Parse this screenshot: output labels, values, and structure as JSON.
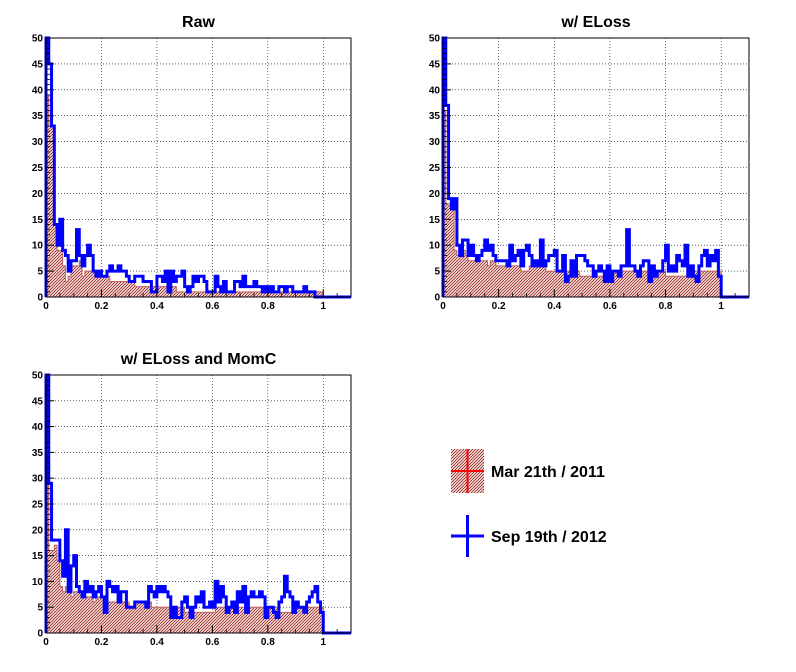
{
  "chart_data": [
    {
      "type": "histogram",
      "title": "Raw",
      "xlabel": "",
      "ylabel": "",
      "xlim": [
        0,
        1.1
      ],
      "ylim": [
        0,
        50
      ],
      "x_ticks": [
        "0",
        "0.2",
        "0.4",
        "0.6",
        "0.8",
        "1"
      ],
      "y_ticks": [
        "0",
        "5",
        "10",
        "15",
        "20",
        "25",
        "30",
        "35",
        "40",
        "45",
        "50"
      ],
      "grid": true,
      "bin_width": 0.01,
      "series": [
        {
          "name": "Mar 21th / 2011",
          "values": [
            39,
            33,
            33,
            14,
            9,
            9,
            6,
            3,
            4,
            6,
            6,
            6,
            7,
            4,
            5,
            5,
            5,
            5,
            5,
            4,
            4,
            4,
            4,
            3,
            3,
            3,
            3,
            3,
            3,
            3,
            3,
            3,
            2,
            2,
            2,
            2,
            2,
            2,
            2,
            2,
            2,
            2,
            2,
            2,
            2,
            2,
            2,
            1,
            1,
            1,
            1,
            1,
            1,
            1,
            1,
            1,
            1,
            1,
            1,
            1,
            1,
            1,
            1,
            1,
            1,
            1,
            1,
            1,
            1,
            1,
            1,
            1,
            1,
            1,
            1,
            1,
            1,
            1,
            1,
            1,
            1,
            1,
            1,
            1,
            1,
            1,
            1,
            1,
            1,
            1,
            1,
            1,
            1,
            1,
            1,
            1,
            1,
            1,
            1,
            1
          ]
        },
        {
          "name": "Sep 19th / 2012",
          "values": [
            50,
            45,
            33,
            14,
            10,
            15,
            9,
            8,
            5,
            7,
            7,
            13,
            8,
            6,
            8,
            10,
            8,
            5,
            4,
            5,
            4,
            4,
            5,
            6,
            5,
            5,
            6,
            5,
            5,
            4,
            3,
            3,
            4,
            4,
            4,
            3,
            3,
            3,
            1,
            1,
            4,
            4,
            3,
            5,
            1,
            5,
            3,
            4,
            4,
            5,
            2,
            1,
            2,
            4,
            3,
            4,
            4,
            3,
            1,
            1,
            1,
            4,
            2,
            1,
            3,
            1,
            1,
            1,
            3,
            3,
            2,
            4,
            2,
            2,
            2,
            3,
            2,
            2,
            1,
            2,
            1,
            2,
            1,
            1,
            2,
            2,
            1,
            2,
            2,
            1,
            1,
            1,
            1,
            2,
            1,
            1,
            1,
            0,
            0,
            0
          ]
        }
      ]
    },
    {
      "type": "histogram",
      "title": "w/ ELoss",
      "xlabel": "",
      "ylabel": "",
      "xlim": [
        0,
        1.1
      ],
      "ylim": [
        0,
        50
      ],
      "x_ticks": [
        "0",
        "0.2",
        "0.4",
        "0.6",
        "0.8",
        "1"
      ],
      "y_ticks": [
        "0",
        "5",
        "10",
        "15",
        "20",
        "25",
        "30",
        "35",
        "40",
        "45",
        "50"
      ],
      "grid": true,
      "bin_width": 0.01,
      "series": [
        {
          "name": "Mar 21th / 2011",
          "values": [
            36,
            18,
            18,
            17,
            9,
            8,
            8,
            9,
            8,
            7,
            7,
            7,
            7,
            7,
            7,
            7,
            6,
            7,
            7,
            6,
            6,
            6,
            6,
            6,
            6,
            6,
            6,
            6,
            5,
            5,
            5,
            6,
            6,
            6,
            6,
            6,
            6,
            5,
            5,
            5,
            5,
            5,
            5,
            5,
            5,
            5,
            5,
            5,
            5,
            4,
            4,
            4,
            4,
            4,
            4,
            4,
            4,
            4,
            4,
            4,
            4,
            5,
            5,
            5,
            5,
            5,
            5,
            5,
            5,
            5,
            5,
            5,
            5,
            5,
            5,
            5,
            5,
            5,
            5,
            5,
            4,
            4,
            4,
            4,
            4,
            4,
            4,
            4,
            4,
            5,
            5,
            5,
            5,
            5,
            5,
            5,
            5,
            5,
            5,
            5
          ]
        },
        {
          "name": "Sep 19th / 2012",
          "values": [
            50,
            37,
            19,
            17,
            19,
            10,
            8,
            11,
            11,
            8,
            10,
            8,
            7,
            8,
            9,
            11,
            9,
            10,
            8,
            7,
            7,
            7,
            7,
            6,
            10,
            7,
            8,
            9,
            6,
            9,
            10,
            8,
            6,
            7,
            6,
            11,
            6,
            7,
            8,
            8,
            9,
            5,
            5,
            8,
            3,
            4,
            7,
            4,
            8,
            8,
            8,
            7,
            6,
            6,
            4,
            5,
            6,
            5,
            3,
            6,
            3,
            5,
            5,
            4,
            6,
            6,
            13,
            6,
            6,
            5,
            4,
            6,
            7,
            7,
            3,
            6,
            4,
            5,
            5,
            7,
            10,
            5,
            6,
            5,
            8,
            7,
            6,
            10,
            4,
            6,
            4,
            3,
            6,
            8,
            9,
            6,
            8,
            7,
            9,
            4
          ]
        }
      ]
    },
    {
      "type": "histogram",
      "title": "w/ ELoss and MomC",
      "xlabel": "",
      "ylabel": "",
      "xlim": [
        0,
        1.1
      ],
      "ylim": [
        0,
        50
      ],
      "x_ticks": [
        "0",
        "0.2",
        "0.4",
        "0.6",
        "0.8",
        "1"
      ],
      "y_ticks": [
        "0",
        "5",
        "10",
        "15",
        "20",
        "25",
        "30",
        "35",
        "40",
        "45",
        "50"
      ],
      "grid": true,
      "bin_width": 0.01,
      "series": [
        {
          "name": "Mar 21th / 2011",
          "values": [
            29,
            16,
            16,
            17,
            14,
            9,
            8,
            9,
            9,
            7,
            8,
            8,
            8,
            7,
            7,
            7,
            7,
            6,
            7,
            7,
            7,
            7,
            6,
            6,
            6,
            6,
            6,
            6,
            6,
            6,
            5,
            5,
            6,
            6,
            6,
            6,
            6,
            6,
            5,
            5,
            5,
            5,
            5,
            5,
            5,
            5,
            5,
            5,
            5,
            5,
            4,
            4,
            4,
            4,
            4,
            4,
            4,
            4,
            4,
            4,
            4,
            5,
            5,
            5,
            5,
            5,
            5,
            5,
            5,
            5,
            5,
            5,
            5,
            5,
            5,
            5,
            5,
            5,
            5,
            5,
            5,
            5,
            5,
            5,
            4,
            4,
            4,
            4,
            4,
            5,
            5,
            5,
            5,
            5,
            5,
            5,
            5,
            5,
            5,
            5
          ]
        },
        {
          "name": "Sep 19th / 2012",
          "values": [
            50,
            29,
            18,
            18,
            18,
            14,
            11,
            20,
            8,
            13,
            15,
            9,
            8,
            7,
            10,
            8,
            9,
            7,
            8,
            9,
            7,
            4,
            10,
            9,
            8,
            9,
            6,
            8,
            8,
            5,
            5,
            5,
            6,
            6,
            6,
            6,
            5,
            9,
            8,
            7,
            9,
            8,
            9,
            8,
            7,
            3,
            5,
            3,
            3,
            6,
            7,
            5,
            3,
            5,
            7,
            6,
            8,
            5,
            5,
            6,
            5,
            10,
            6,
            9,
            7,
            4,
            5,
            6,
            4,
            8,
            6,
            9,
            4,
            7,
            8,
            7,
            7,
            8,
            7,
            3,
            5,
            5,
            4,
            3,
            6,
            7,
            11,
            8,
            7,
            4,
            6,
            5,
            5,
            4,
            6,
            7,
            8,
            9,
            6,
            4
          ]
        }
      ]
    }
  ],
  "legend": {
    "entries": [
      {
        "label": "Mar 21th / 2011",
        "color": "#ff0000"
      },
      {
        "label": "Sep 19th / 2012",
        "color": "#0000ff"
      }
    ]
  },
  "colors": {
    "fill": "#b86060",
    "red": "#ff0000",
    "blue": "#0000ff",
    "grid": "#000000"
  }
}
